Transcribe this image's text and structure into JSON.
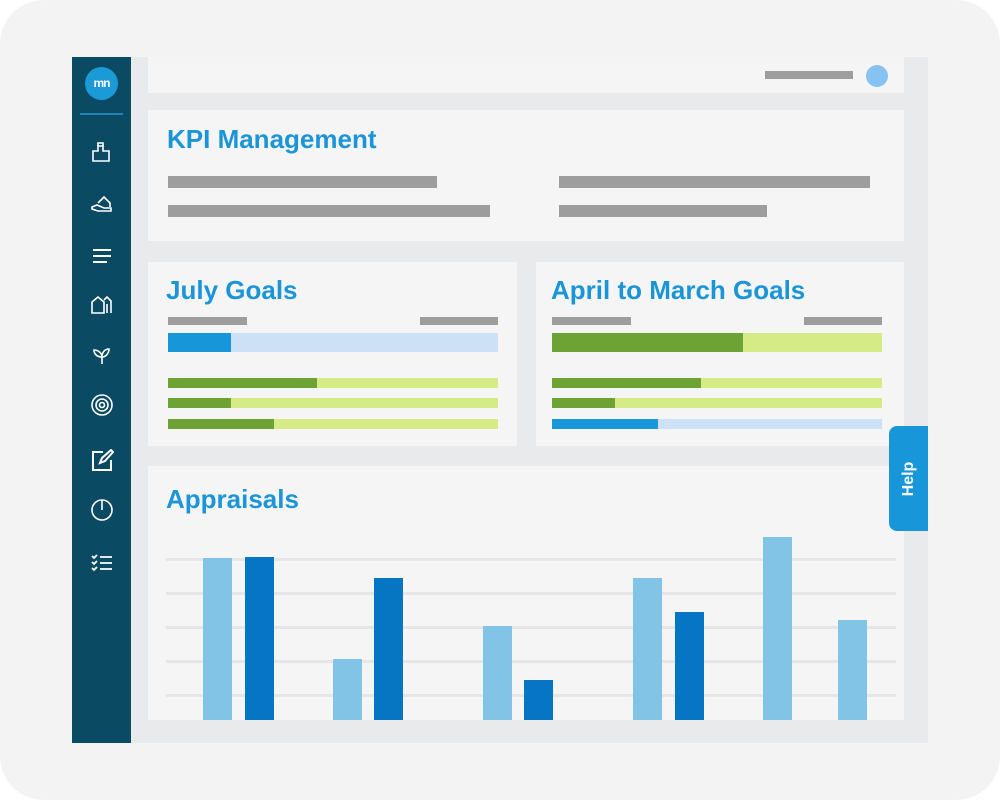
{
  "brand": {
    "logo_text": "mn",
    "accent": "#1b95d8",
    "sidebar_bg": "#0b4a63"
  },
  "sidebar": {
    "items": [
      {
        "icon": "puzzle-icon"
      },
      {
        "icon": "hand-house-icon"
      },
      {
        "icon": "menu-lines-icon"
      },
      {
        "icon": "buildings-icon"
      },
      {
        "icon": "sprout-icon"
      },
      {
        "icon": "target-icon"
      },
      {
        "icon": "edit-icon"
      },
      {
        "icon": "power-icon"
      },
      {
        "icon": "checklist-icon"
      }
    ]
  },
  "kpi": {
    "title": "KPI Management"
  },
  "july": {
    "title": "July Goals",
    "primary_progress": 0.19,
    "goals": [
      0.45,
      0.19,
      0.32
    ]
  },
  "april": {
    "title": "April to March Goals",
    "primary_progress": 0.58,
    "goals": [
      0.45,
      0.19
    ],
    "blue_goal": 0.32
  },
  "appraisals": {
    "title": "Appraisals",
    "chart_data": {
      "type": "bar",
      "series": [
        {
          "values": [
            162,
            61,
            94,
            142,
            183,
            100
          ]
        },
        {
          "values": [
            163,
            142,
            40,
            108
          ]
        }
      ],
      "colors": {
        "light": "#82c4e6",
        "dark": "#0676c4"
      }
    }
  },
  "help": {
    "label": "Help"
  }
}
